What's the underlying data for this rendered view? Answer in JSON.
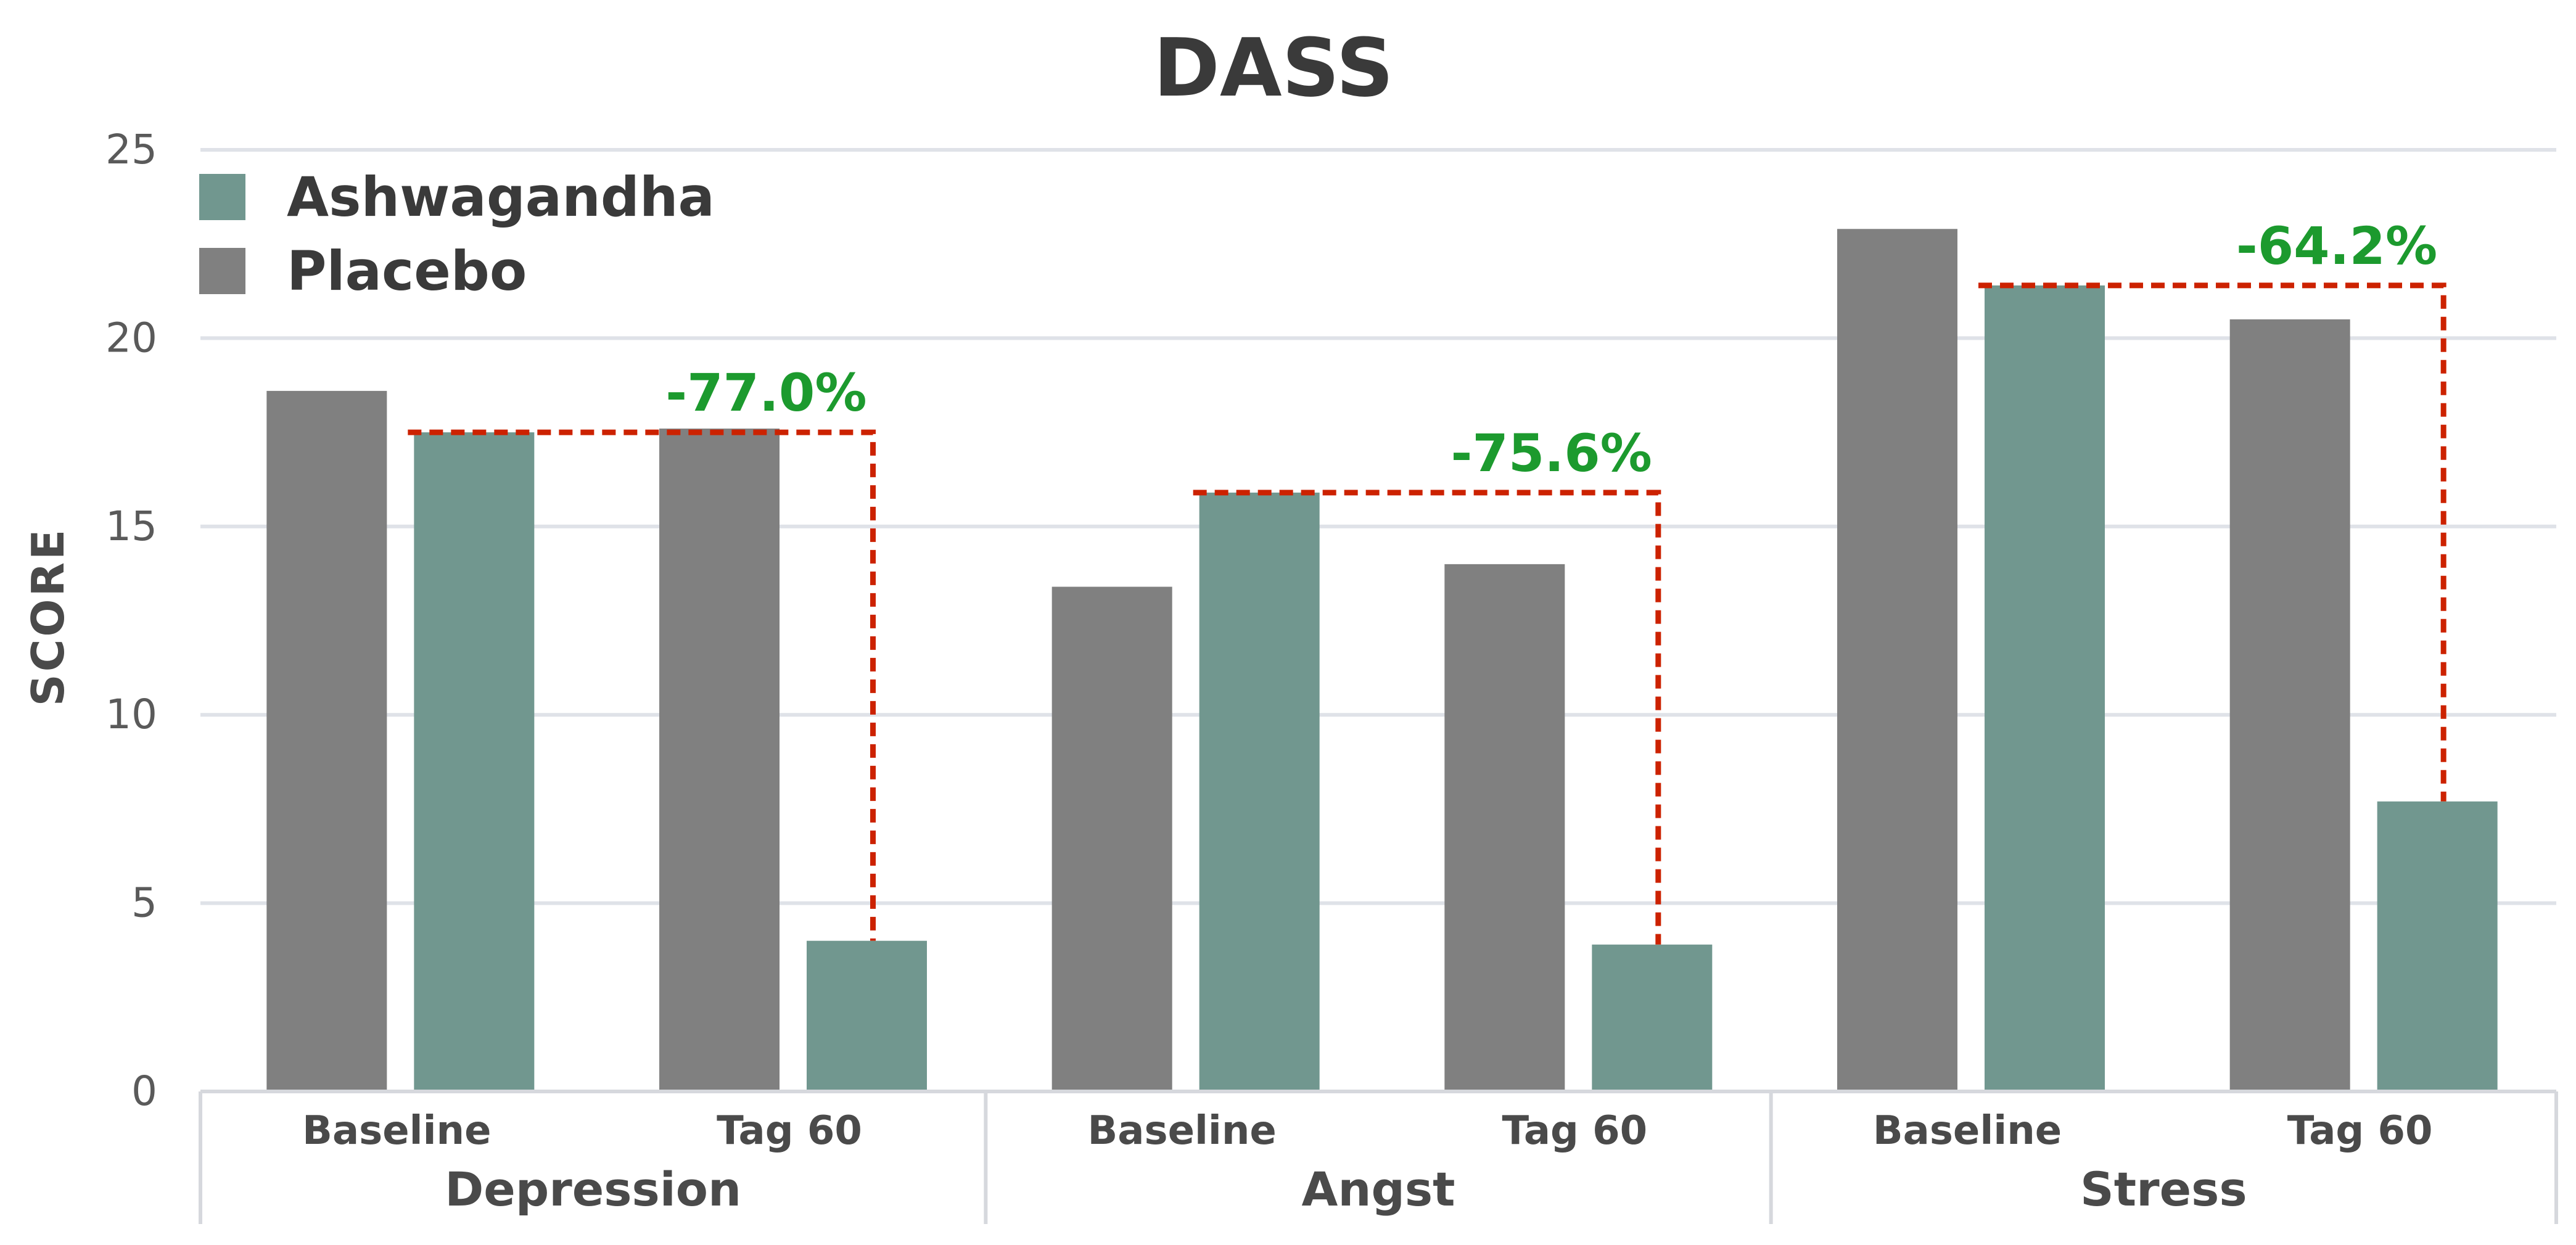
{
  "chart_data": {
    "type": "bar",
    "title": "DASS",
    "ylabel": "SCORE",
    "xlabel": "",
    "ylim": [
      0,
      25
    ],
    "yticks": [
      0,
      5,
      10,
      15,
      20,
      25
    ],
    "grid": true,
    "legend_position": "top-left",
    "colors": {
      "Placebo": "#808080",
      "Ashwagandha": "#71978f",
      "connector": "#cc2200",
      "annotation": "#1c9a2e"
    },
    "groups": [
      {
        "name": "Depression",
        "timepoints": [
          {
            "label": "Baseline",
            "Placebo": 18.6,
            "Ashwagandha": 17.5
          },
          {
            "label": "Tag 60",
            "Placebo": 17.6,
            "Ashwagandha": 4.0
          }
        ],
        "annotation": "-77.0%"
      },
      {
        "name": "Angst",
        "timepoints": [
          {
            "label": "Baseline",
            "Placebo": 13.4,
            "Ashwagandha": 15.9
          },
          {
            "label": "Tag 60",
            "Placebo": 14.0,
            "Ashwagandha": 3.9
          }
        ],
        "annotation": "-75.6%"
      },
      {
        "name": "Stress",
        "timepoints": [
          {
            "label": "Baseline",
            "Placebo": 22.9,
            "Ashwagandha": 21.4
          },
          {
            "label": "Tag 60",
            "Placebo": 20.5,
            "Ashwagandha": 7.7
          }
        ],
        "annotation": "-64.2%"
      }
    ],
    "legend": [
      "Ashwagandha",
      "Placebo"
    ]
  }
}
